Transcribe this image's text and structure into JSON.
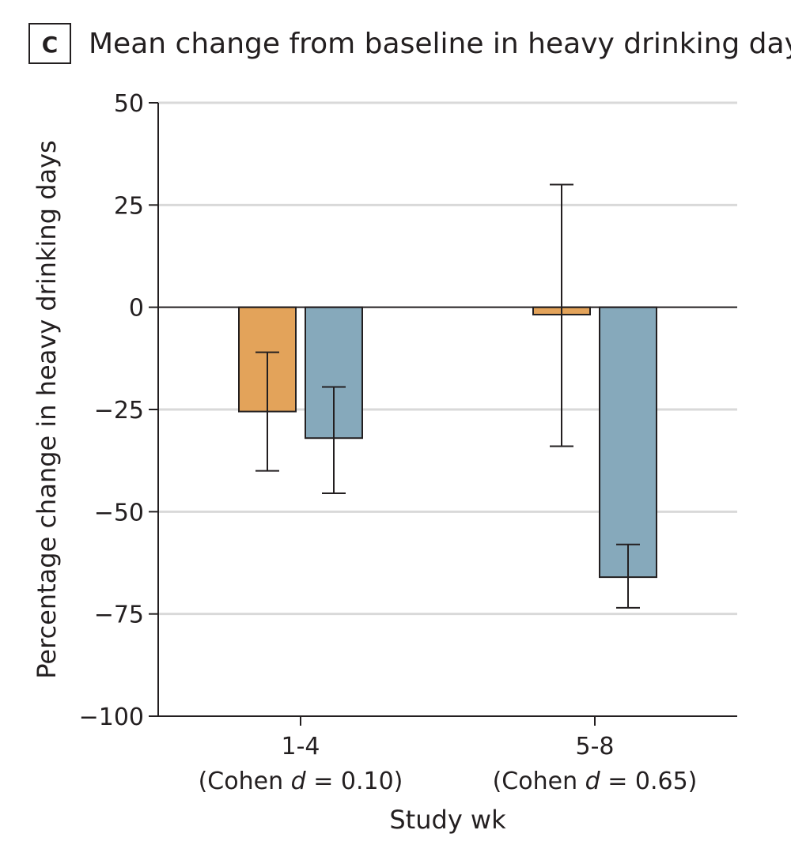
{
  "panel_letter": "C",
  "chart_data": {
    "type": "bar",
    "title": "Mean change from baseline in heavy drinking days",
    "ylabel": "Percentage change in heavy drinking days",
    "xlabel": "Study wk",
    "ylim": [
      -100,
      50
    ],
    "yticks": [
      50,
      25,
      0,
      -25,
      -50,
      -75,
      -100
    ],
    "ytick_labels": [
      "50",
      "25",
      "0",
      "−25",
      "−50",
      "−75",
      "−100"
    ],
    "grid": true,
    "categories": [
      {
        "label": "1-4",
        "effect_prefix": "(Cohen ",
        "effect_symbol": "d",
        "effect_value": " = 0.10)"
      },
      {
        "label": "5-8",
        "effect_prefix": "(Cohen ",
        "effect_symbol": "d",
        "effect_value": " = 0.65)"
      }
    ],
    "series": [
      {
        "color": "#e3a35a",
        "values": [
          -25.5,
          -1.8
        ],
        "err_low": [
          -40,
          -34
        ],
        "err_high": [
          -11,
          30
        ]
      },
      {
        "color": "#86a9bb",
        "values": [
          -32,
          -66
        ],
        "err_low": [
          -45.5,
          -73.5
        ],
        "err_high": [
          -19.5,
          -58
        ]
      }
    ]
  }
}
